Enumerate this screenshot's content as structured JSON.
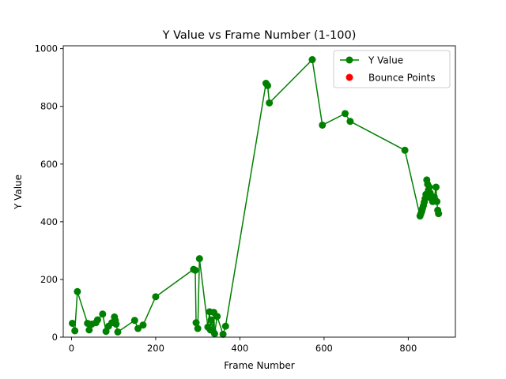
{
  "chart_data": {
    "type": "line",
    "title": "Y Value vs Frame Number (1-100)",
    "xlabel": "Frame Number",
    "ylabel": "Y Value",
    "xlim": [
      -19.6,
      912
    ],
    "ylim": [
      0,
      1010
    ],
    "x_ticks": [
      0,
      200,
      400,
      600,
      800
    ],
    "y_ticks": [
      0,
      200,
      400,
      600,
      800,
      1000
    ],
    "x_tick_labels": [
      "0",
      "200",
      "400",
      "600",
      "800"
    ],
    "y_tick_labels": [
      "0",
      "200",
      "400",
      "600",
      "800",
      "1000"
    ],
    "grid": false,
    "legend_position": "top-right",
    "series": [
      {
        "name": "Y Value",
        "color": "#008000",
        "marker": "circle",
        "line": true,
        "x": [
          2,
          8,
          14,
          38,
          42,
          48,
          58,
          62,
          74,
          82,
          88,
          96,
          102,
          104,
          106,
          110,
          150,
          158,
          170,
          200,
          290,
          294,
          296,
          300,
          304,
          324,
          328,
          330,
          332,
          336,
          338,
          340,
          346,
          360,
          366,
          462,
          466,
          470,
          572,
          596,
          650,
          662,
          792,
          828,
          830,
          832,
          834,
          836,
          838,
          840,
          842,
          844,
          846,
          848,
          850,
          852,
          854,
          856,
          858,
          862,
          866,
          868,
          870,
          872
        ],
        "y": [
          48,
          22,
          158,
          48,
          25,
          45,
          50,
          60,
          80,
          20,
          38,
          50,
          70,
          58,
          45,
          18,
          58,
          30,
          42,
          140,
          235,
          232,
          50,
          30,
          272,
          35,
          88,
          25,
          60,
          22,
          86,
          12,
          72,
          10,
          38,
          880,
          872,
          812,
          962,
          735,
          775,
          748,
          648,
          420,
          428,
          436,
          446,
          456,
          468,
          480,
          495,
          545,
          530,
          510,
          520,
          500,
          490,
          478,
          470,
          485,
          520,
          470,
          440,
          428
        ]
      },
      {
        "name": "Bounce Points",
        "color": "#ff0000",
        "marker": "circle",
        "line": false,
        "x": [],
        "y": []
      }
    ]
  }
}
